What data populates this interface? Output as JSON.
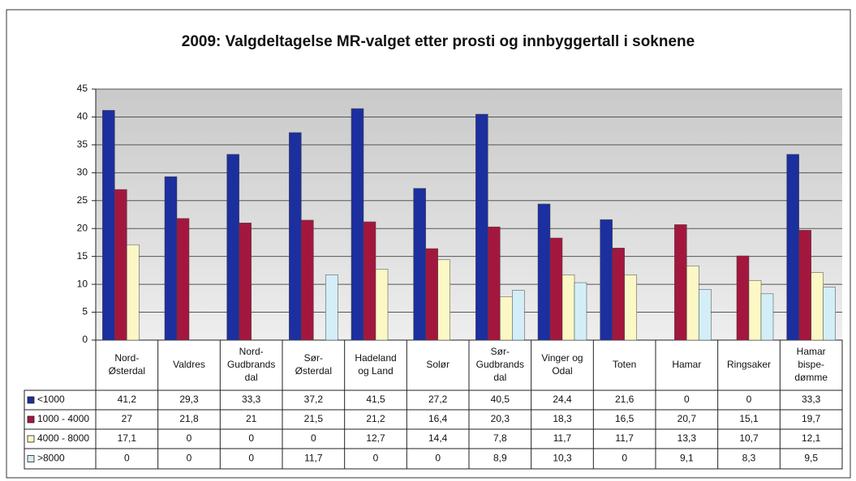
{
  "chart_data": {
    "type": "bar",
    "title": "2009: Valgdeltagelse MR-valget etter prosti og innbyggertall i soknene",
    "categories": [
      "Nord-\nØsterdal",
      "Valdres",
      "Nord-\nGudbrands\ndal",
      "Sør-\nØsterdal",
      "Hadeland\nog Land",
      "Solør",
      "Sør-\nGudbrands\ndal",
      "Vinger og\nOdal",
      "Toten",
      "Hamar",
      "Ringsaker",
      "Hamar\nbispe-\ndømme"
    ],
    "series": [
      {
        "name": "<1000",
        "color": "#1c2f9e",
        "values": [
          41.2,
          29.3,
          33.3,
          37.2,
          41.5,
          27.2,
          40.5,
          24.4,
          21.6,
          0,
          0,
          33.3
        ],
        "value_labels": [
          "41,2",
          "29,3",
          "33,3",
          "37,2",
          "41,5",
          "27,2",
          "40,5",
          "24,4",
          "21,6",
          "0",
          "0",
          "33,3"
        ]
      },
      {
        "name": "1000 - 4000",
        "color": "#a3173e",
        "values": [
          27,
          21.8,
          21,
          21.5,
          21.2,
          16.4,
          20.3,
          18.3,
          16.5,
          20.7,
          15.1,
          19.7
        ],
        "value_labels": [
          "27",
          "21,8",
          "21",
          "21,5",
          "21,2",
          "16,4",
          "20,3",
          "18,3",
          "16,5",
          "20,7",
          "15,1",
          "19,7"
        ]
      },
      {
        "name": "4000 - 8000",
        "color": "#fbf8c6",
        "values": [
          17.1,
          0,
          0,
          0,
          12.7,
          14.4,
          7.8,
          11.7,
          11.7,
          13.3,
          10.7,
          12.1
        ],
        "value_labels": [
          "17,1",
          "0",
          "0",
          "0",
          "12,7",
          "14,4",
          "7,8",
          "11,7",
          "11,7",
          "13,3",
          "10,7",
          "12,1"
        ]
      },
      {
        "name": ">8000",
        "color": "#d3eef6",
        "values": [
          0,
          0,
          0,
          11.7,
          0,
          0,
          8.9,
          10.3,
          0,
          9.1,
          8.3,
          9.5
        ],
        "value_labels": [
          "0",
          "0",
          "0",
          "11,7",
          "0",
          "0",
          "8,9",
          "10,3",
          "0",
          "9,1",
          "8,3",
          "9,5"
        ]
      }
    ],
    "ylim": [
      0,
      45
    ],
    "yticks": [
      0,
      5,
      10,
      15,
      20,
      25,
      30,
      35,
      40,
      45
    ],
    "grid": true
  }
}
